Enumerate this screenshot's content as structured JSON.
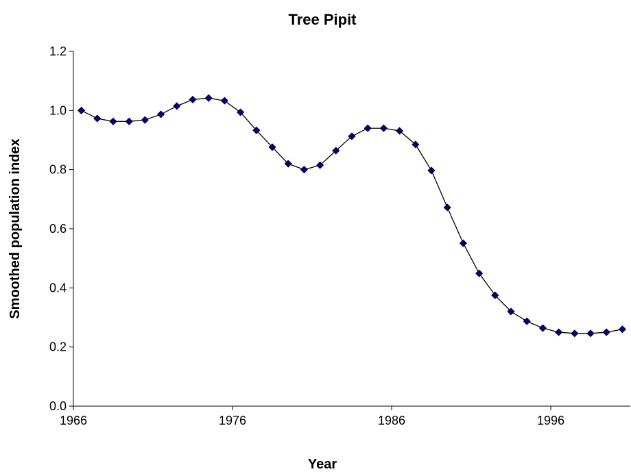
{
  "chart_data": {
    "type": "line",
    "title": "Tree Pipit",
    "x_label": "Year",
    "y_label": "Smoothed population index",
    "categories": [
      "1966",
      null,
      null,
      null,
      null,
      null,
      null,
      null,
      null,
      null,
      "1976",
      null,
      null,
      null,
      null,
      null,
      null,
      null,
      null,
      null,
      "1986",
      null,
      null,
      null,
      null,
      null,
      null,
      null,
      null,
      null,
      "1996",
      null,
      null,
      null,
      null
    ],
    "series": [
      {
        "name": "Tree Pipit",
        "color": "#000080",
        "line_color": "#000000",
        "values": [
          1.0,
          0.973,
          0.963,
          0.963,
          0.968,
          0.987,
          1.015,
          1.037,
          1.042,
          1.033,
          0.994,
          0.933,
          0.876,
          0.82,
          0.8,
          0.815,
          0.864,
          0.913,
          0.94,
          0.94,
          0.931,
          0.885,
          0.797,
          0.672,
          0.551,
          0.449,
          0.375,
          0.32,
          0.287,
          0.264,
          0.25,
          0.246,
          0.246,
          0.25,
          0.26
        ]
      }
    ],
    "ylim": [
      0,
      1.2
    ],
    "yticks": [
      {
        "value": 0,
        "label": "0.0"
      },
      0.2,
      0.4,
      0.6,
      0.8,
      {
        "value": 1,
        "label": "1.0"
      },
      1.2
    ],
    "grid": false
  }
}
